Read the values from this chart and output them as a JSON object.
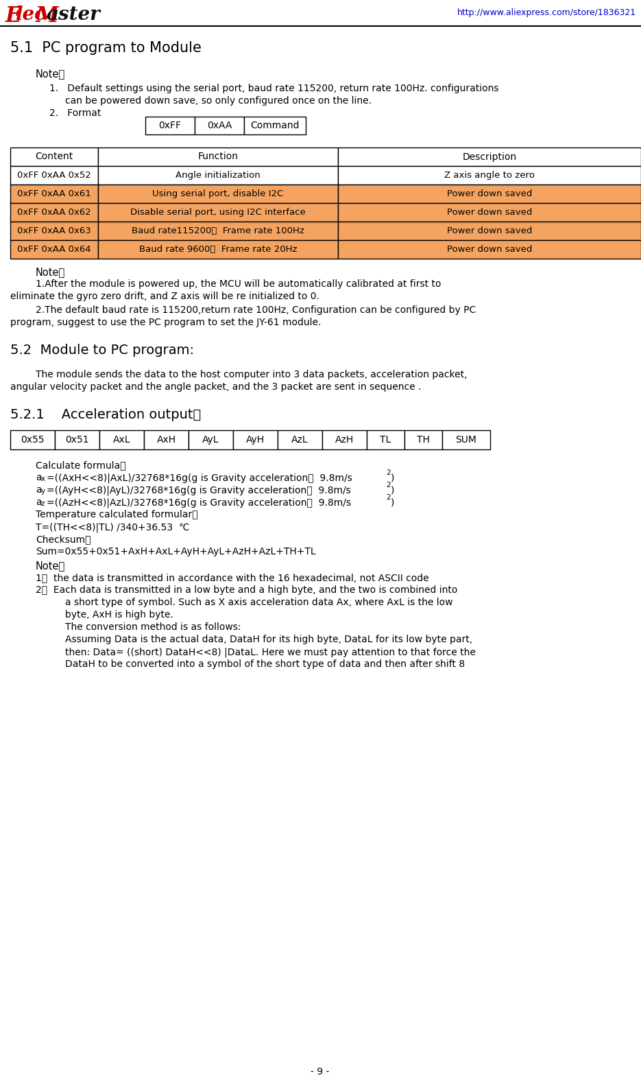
{
  "title": "5.1  PC program to Module",
  "url": "http://www.aliexpress.com/store/1836321",
  "bg_color": "#ffffff",
  "orange_color": "#F4A460",
  "format_cells": [
    "0xFF",
    "0xAA",
    "Command"
  ],
  "table1_headers": [
    "Content",
    "Function",
    "Description"
  ],
  "table1_rows": [
    [
      "0xFF 0xAA 0x52",
      "Angle initialization",
      "Z axis angle to zero",
      false
    ],
    [
      "0xFF 0xAA 0x61",
      "Using serial port, disable I2C",
      "Power down saved",
      true
    ],
    [
      "0xFF 0xAA 0x62",
      "Disable serial port, using I2C interface",
      "Power down saved",
      true
    ],
    [
      "0xFF 0xAA 0x63",
      "Baud rate115200，  Frame rate 100Hz",
      "Power down saved",
      true
    ],
    [
      "0xFF 0xAA 0x64",
      "Baud rate 9600，  Frame rate 20Hz",
      "Power down saved",
      true
    ]
  ],
  "table2_cells": [
    "0x55",
    "0x51",
    "AxL",
    "AxH",
    "AyL",
    "AyH",
    "AzL",
    "AzH",
    "TL",
    "TH",
    "SUM"
  ],
  "section_52": "5.2  Module to PC program:",
  "section_521": "5.2.1    Acceleration output：",
  "page_num": "- 9 -"
}
